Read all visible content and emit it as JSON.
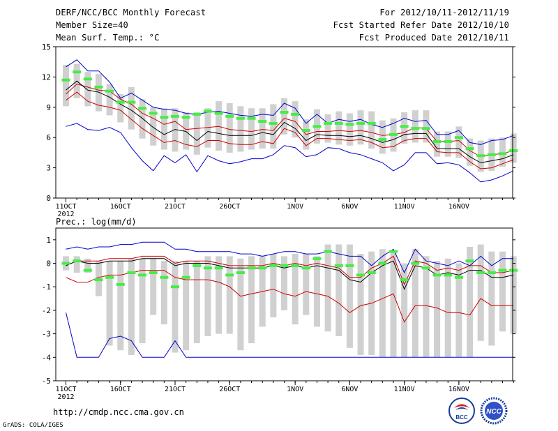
{
  "header": {
    "title": "DERF/NCC/BCC Monthly Forecast",
    "member": "Member Size=40",
    "variable": "Mean Surf. Temp.: °C",
    "period": "For 2012/10/11-2012/11/19",
    "started": "Fcst Started Refer Date 2012/10/10",
    "produced": "Fcst Produced Date 2012/10/11"
  },
  "footer": {
    "url": "http://cmdp.ncc.cma.gov.cn",
    "credit": "GrADS: COLA/IGES",
    "logo_left": "BCC",
    "logo_right": "NCC"
  },
  "colors": {
    "box": "#d0d0d0",
    "median": "#44ee44",
    "envelope": "#0000cc",
    "band": "#cc0000",
    "mean": "#000000"
  },
  "chart_data": [
    {
      "type": "box-plume",
      "title": "Mean Surf. Temp.: °C",
      "ylim": [
        0,
        15
      ],
      "yticks": [
        0,
        3,
        6,
        9,
        12,
        15
      ],
      "x_tick_labels": [
        "11OCT",
        "16OCT",
        "21OCT",
        "26OCT",
        "1NOV",
        "6NOV",
        "11NOV",
        "16NOV"
      ],
      "x_tick_index": [
        0,
        5,
        10,
        15,
        21,
        26,
        31,
        36
      ],
      "year_label": "2012",
      "ensemble_max": [
        13,
        13.7,
        12.6,
        12.6,
        11.5,
        9.9,
        10.4,
        9.7,
        9,
        8.8,
        8.7,
        8.4,
        8.3,
        8.5,
        8.6,
        8.4,
        8.2,
        8.1,
        8.3,
        8.2,
        9.4,
        8.9,
        7.4,
        8.3,
        7.4,
        7.8,
        7.6,
        7.8,
        7.3,
        7.0,
        7.4,
        7.9,
        7.6,
        7.7,
        6.3,
        6.3,
        6.7,
        5.5,
        5.3,
        5.7,
        5.8,
        6.2
      ],
      "band_upper": [
        10.3,
        11.3,
        11.0,
        10.7,
        10.6,
        9.8,
        9.3,
        8.4,
        7.9,
        7.3,
        7.6,
        6.8,
        6.9,
        7.0,
        7.1,
        6.8,
        6.7,
        6.6,
        6.8,
        6.7,
        7.9,
        7.6,
        6.3,
        6.6,
        6.6,
        6.7,
        6.6,
        6.7,
        6.5,
        6.2,
        6.3,
        6.5,
        7.0,
        6.9,
        5.6,
        5.6,
        5.7,
        4.7,
        4.1,
        4.3,
        4.4,
        4.7
      ],
      "mean": [
        10.7,
        11.6,
        10.7,
        10.5,
        10.0,
        9.3,
        8.7,
        7.9,
        7.0,
        6.3,
        6.8,
        6.6,
        5.7,
        6.6,
        6.4,
        6.2,
        6.2,
        6.2,
        6.5,
        6.3,
        7.5,
        6.9,
        5.7,
        6.3,
        6.2,
        6.2,
        6.1,
        6.2,
        5.9,
        5.5,
        5.8,
        6.3,
        6.4,
        6.4,
        4.9,
        4.9,
        4.9,
        4.1,
        3.5,
        3.7,
        3.9,
        4.3
      ],
      "band_lower": [
        9.7,
        10.5,
        9.6,
        9.2,
        9.0,
        8.7,
        7.8,
        6.9,
        6.2,
        5.5,
        5.7,
        5.3,
        5.1,
        5.7,
        5.7,
        5.4,
        5.3,
        5.3,
        5.6,
        5.4,
        6.9,
        6.5,
        5.2,
        5.9,
        5.9,
        5.8,
        5.7,
        5.8,
        5.5,
        5.0,
        5.1,
        5.7,
        5.9,
        5.9,
        4.6,
        4.5,
        4.5,
        3.6,
        2.9,
        3.0,
        3.4,
        3.8
      ],
      "ensemble_min": [
        7.1,
        7.4,
        6.8,
        6.7,
        7.0,
        6.5,
        5.0,
        3.7,
        2.7,
        4.2,
        3.5,
        4.3,
        2.6,
        4.2,
        3.7,
        3.4,
        3.6,
        3.9,
        3.9,
        4.3,
        5.2,
        5.0,
        4.1,
        4.3,
        5.0,
        4.9,
        4.5,
        4.3,
        3.9,
        3.5,
        2.7,
        3.3,
        4.5,
        4.5,
        3.4,
        3.5,
        3.3,
        2.5,
        1.6,
        1.8,
        2.2,
        2.7
      ],
      "box_high": [
        13.2,
        13.3,
        12.5,
        12.3,
        11.3,
        10.3,
        11.0,
        9.8,
        9.0,
        8.9,
        8.9,
        8.5,
        8.5,
        8.9,
        9.6,
        9.4,
        9.1,
        8.9,
        8.9,
        9.3,
        9.9,
        9.6,
        7.8,
        8.8,
        8.3,
        8.6,
        8.4,
        8.7,
        8.6,
        7.7,
        7.9,
        8.5,
        8.7,
        8.7,
        6.6,
        6.6,
        7.1,
        5.9,
        5.7,
        5.9,
        6.0,
        6.4
      ],
      "box_low": [
        9.1,
        9.9,
        9.1,
        8.6,
        8.2,
        7.5,
        6.8,
        5.9,
        5.2,
        4.8,
        4.6,
        4.8,
        4.3,
        5.0,
        4.7,
        4.5,
        4.6,
        4.8,
        4.9,
        4.9,
        6.3,
        6.0,
        4.8,
        5.4,
        5.5,
        5.3,
        5.2,
        5.3,
        4.9,
        4.4,
        4.6,
        5.4,
        5.5,
        5.5,
        4.1,
        4.1,
        4.0,
        3.2,
        2.6,
        2.7,
        3.1,
        3.5
      ],
      "median": [
        11.7,
        12.5,
        11.8,
        11.0,
        10.6,
        9.5,
        9.5,
        8.9,
        8.4,
        8.0,
        8.1,
        8.0,
        8.3,
        8.6,
        8.4,
        8.1,
        7.9,
        7.9,
        7.6,
        7.4,
        8.5,
        8.3,
        6.7,
        7.1,
        7.4,
        7.4,
        7.3,
        7.4,
        7.4,
        5.8,
        6.3,
        7.1,
        6.9,
        6.9,
        5.6,
        5.6,
        6.0,
        4.9,
        4.2,
        4.3,
        4.4,
        4.7
      ]
    },
    {
      "type": "box-plume",
      "title": "Prec.: log(mm/d)",
      "ylim": [
        -5,
        1.5
      ],
      "yticks": [
        -5,
        -4,
        -3,
        -2,
        -1,
        0,
        1
      ],
      "x_tick_labels": [
        "11OCT",
        "16OCT",
        "21OCT",
        "26OCT",
        "1NOV",
        "6NOV",
        "11NOV",
        "16NOV"
      ],
      "x_tick_index": [
        0,
        5,
        10,
        15,
        21,
        26,
        31,
        36
      ],
      "year_label": "2012",
      "ensemble_max": [
        0.6,
        0.7,
        0.6,
        0.7,
        0.7,
        0.8,
        0.8,
        0.9,
        0.9,
        0.9,
        0.6,
        0.6,
        0.5,
        0.5,
        0.5,
        0.5,
        0.4,
        0.4,
        0.3,
        0.4,
        0.5,
        0.5,
        0.4,
        0.4,
        0.5,
        0.4,
        0.3,
        0.3,
        -0.1,
        0.3,
        0.6,
        -0.4,
        0.6,
        0.1,
        0.0,
        -0.1,
        0.1,
        -0.1,
        0.3,
        -0.1,
        0.2,
        0.2
      ],
      "band_upper": [
        -0.1,
        0.1,
        0.1,
        0.1,
        0.2,
        0.2,
        0.2,
        0.3,
        0.3,
        0.3,
        0.0,
        0.1,
        0.1,
        0.1,
        0.0,
        -0.1,
        -0.1,
        -0.1,
        -0.1,
        0.0,
        -0.1,
        0.0,
        -0.1,
        0.0,
        -0.1,
        -0.2,
        -0.6,
        -0.6,
        -0.2,
        0.0,
        0.3,
        -0.9,
        0.1,
        0.0,
        -0.3,
        -0.2,
        -0.3,
        -0.1,
        -0.1,
        -0.4,
        -0.4,
        -0.3
      ],
      "mean": [
        -0.1,
        0.1,
        0.0,
        0.0,
        0.1,
        0.1,
        0.1,
        0.2,
        0.2,
        0.2,
        -0.1,
        0.0,
        0.0,
        0.0,
        -0.1,
        -0.2,
        -0.2,
        -0.2,
        -0.2,
        -0.1,
        -0.2,
        -0.1,
        -0.2,
        -0.1,
        -0.2,
        -0.3,
        -0.7,
        -0.8,
        -0.4,
        -0.1,
        0.1,
        -1.1,
        -0.1,
        -0.2,
        -0.5,
        -0.4,
        -0.5,
        -0.3,
        -0.3,
        -0.6,
        -0.6,
        -0.5
      ],
      "band_lower": [
        -0.6,
        -0.8,
        -0.8,
        -0.6,
        -0.5,
        -0.5,
        -0.4,
        -0.3,
        -0.3,
        -0.3,
        -0.6,
        -0.7,
        -0.7,
        -0.7,
        -0.8,
        -1.0,
        -1.4,
        -1.3,
        -1.2,
        -1.1,
        -1.3,
        -1.4,
        -1.2,
        -1.3,
        -1.4,
        -1.7,
        -2.1,
        -1.8,
        -1.7,
        -1.5,
        -1.3,
        -2.5,
        -1.8,
        -1.8,
        -1.9,
        -2.1,
        -2.1,
        -2.2,
        -1.5,
        -1.8,
        -1.8,
        -1.8
      ],
      "ensemble_min": [
        -2.1,
        -4.0,
        -4.0,
        -4.0,
        -3.2,
        -3.1,
        -3.3,
        -4.0,
        -4.0,
        -4.0,
        -3.3,
        -4.0,
        -4.0,
        -4.0,
        -4.0,
        -4.0,
        -4.0,
        -4.0,
        -4.0,
        -4.0,
        -4.0,
        -4.0,
        -4.0,
        -4.0,
        -4.0,
        -4.0,
        -4.0,
        -4.0,
        -4.0,
        -4.0,
        -4.0,
        -4.0,
        -4.0,
        -4.0,
        -4.0,
        -4.0,
        -4.0,
        -4.0,
        -4.0,
        -4.0,
        -4.0,
        -4.0
      ],
      "box_high": [
        0.3,
        0.3,
        0.2,
        0.1,
        0.1,
        0.1,
        0.2,
        0.2,
        0.2,
        0.1,
        0.1,
        0.1,
        0.1,
        0.3,
        0.3,
        0.3,
        0.2,
        0.3,
        0.3,
        0.4,
        0.3,
        0.4,
        0.4,
        0.3,
        0.8,
        0.8,
        0.8,
        0.4,
        0.5,
        0.6,
        0.5,
        0.0,
        0.6,
        0.3,
        0.1,
        0.2,
        0.0,
        0.7,
        0.8,
        0.5,
        0.5,
        0.3
      ],
      "box_low": [
        -0.3,
        -0.4,
        -0.4,
        -1.4,
        -3.5,
        -3.7,
        -3.9,
        -3.4,
        -2.2,
        -2.6,
        -3.8,
        -3.7,
        -3.4,
        -3.1,
        -3.0,
        -3.0,
        -3.7,
        -3.4,
        -2.7,
        -2.3,
        -2.0,
        -2.6,
        -2.2,
        -2.7,
        -2.9,
        -3.1,
        -3.6,
        -3.9,
        -3.9,
        -4.0,
        -4.0,
        -4.0,
        -4.0,
        -4.0,
        -4.0,
        -4.0,
        -4.0,
        -4.0,
        -3.3,
        -3.5,
        -2.9,
        -3.0
      ],
      "median": [
        0.0,
        0.1,
        -0.3,
        -0.7,
        -0.6,
        -0.9,
        -0.4,
        -0.5,
        -0.4,
        -0.6,
        -1.0,
        -0.6,
        -0.1,
        -0.2,
        -0.2,
        -0.5,
        -0.4,
        -0.2,
        -0.2,
        -0.1,
        -0.1,
        -0.1,
        -0.2,
        0.2,
        0.5,
        -0.1,
        -0.1,
        -0.5,
        -0.4,
        0.0,
        0.5,
        -0.7,
        0.0,
        -0.2,
        -0.5,
        -0.5,
        -0.6,
        0.1,
        -0.4,
        -0.4,
        -0.3,
        -0.3
      ]
    }
  ]
}
